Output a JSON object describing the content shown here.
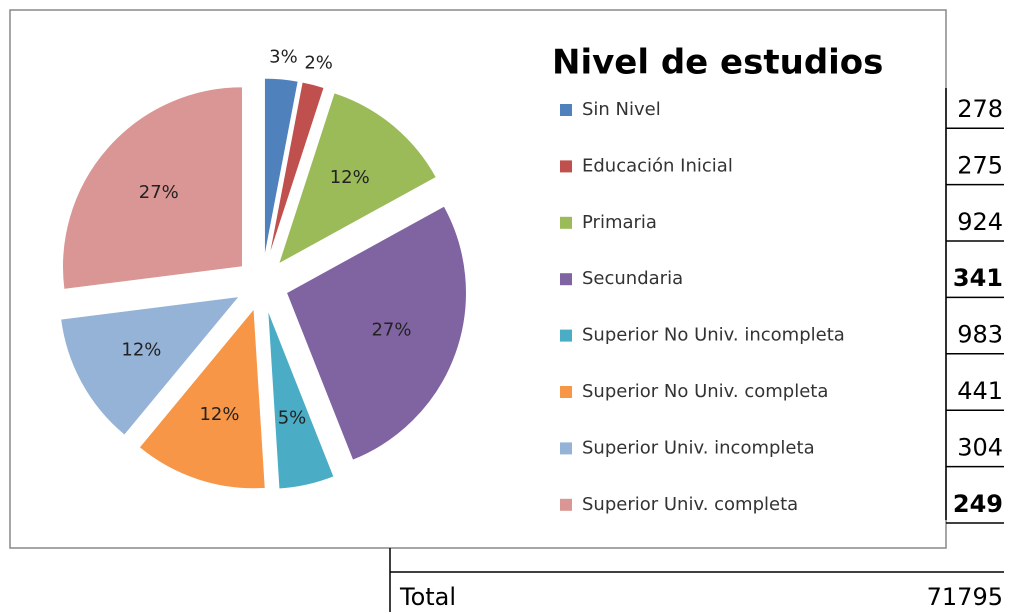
{
  "chart_data": {
    "type": "pie",
    "title": "Nivel de estudios",
    "categories": [
      "Sin Nivel",
      "Educación Inicial",
      "Primaria",
      "Secundaria",
      "Superior No Univ. incompleta",
      "Superior No Univ. completa",
      "Superior Univ. incompleta",
      "Superior Univ. completa"
    ],
    "values": [
      3,
      2,
      12,
      27,
      5,
      12,
      12,
      27
    ],
    "value_labels": [
      "3%",
      "2%",
      "12%",
      "27%",
      "5%",
      "12%",
      "12%",
      "27%"
    ],
    "colors": [
      "#4f81bd",
      "#c0504d",
      "#9bbb59",
      "#8064a2",
      "#4bacc6",
      "#f79646",
      "#95b3d7",
      "#d99694"
    ],
    "legend": "right"
  },
  "table": {
    "rows": [
      {
        "value": 278
      },
      {
        "value": 275
      },
      {
        "value": 924
      },
      {
        "value": 341,
        "bold": true
      },
      {
        "value": 983
      },
      {
        "value": 441
      },
      {
        "value": 304
      },
      {
        "value": 249,
        "bold": true
      }
    ],
    "total_label": "Total",
    "total": 71795
  }
}
